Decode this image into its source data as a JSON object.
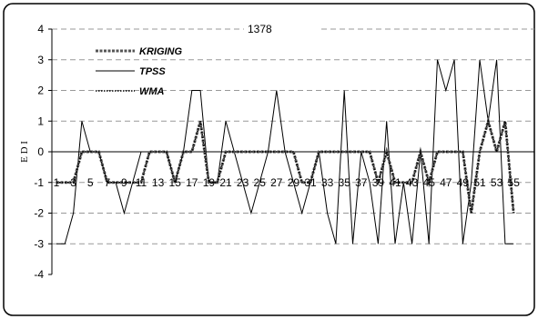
{
  "chart_data": {
    "type": "line",
    "title": "1378",
    "xlabel": "",
    "ylabel": "E D I",
    "ylim": [
      -4,
      4
    ],
    "yticks": [
      -4,
      -3,
      -2,
      -1,
      0,
      1,
      2,
      3,
      4
    ],
    "grid": "horizontal-dashed",
    "legend_placement": "top-left",
    "categories": [
      "1",
      "2",
      "3",
      "4",
      "5",
      "6",
      "7",
      "8",
      "9",
      "10",
      "11",
      "12",
      "13",
      "14",
      "15",
      "16",
      "17",
      "18",
      "19",
      "20",
      "21",
      "22",
      "23",
      "24",
      "25",
      "26",
      "27",
      "28",
      "29",
      "30",
      "31",
      "32",
      "33",
      "34",
      "35",
      "36",
      "37",
      "38",
      "39",
      "40",
      "41",
      "42",
      "43",
      "44",
      "45",
      "46",
      "47",
      "48",
      "49",
      "50",
      "51",
      "52",
      "53",
      "54",
      "55"
    ],
    "category_labels_shown": [
      "1",
      "3",
      "5",
      "7",
      "9",
      "11",
      "13",
      "15",
      "17",
      "19",
      "21",
      "23",
      "25",
      "27",
      "29",
      "31",
      "33",
      "35",
      "37",
      "39",
      "41",
      "43",
      "45",
      "47",
      "49",
      "51",
      "53",
      "55"
    ],
    "series": [
      {
        "name": "KRIGING",
        "style": "dashed-thick",
        "color": "#555555",
        "values": [
          -1,
          -1,
          -1,
          0,
          0,
          0,
          -1,
          -1,
          -1,
          -1,
          -1,
          0,
          0,
          0,
          -1,
          0,
          0,
          1,
          -1,
          -1,
          0,
          0,
          0,
          0,
          0,
          0,
          0,
          0,
          0,
          -1,
          -1,
          0,
          0,
          0,
          0,
          0,
          0,
          0,
          -1,
          0,
          -1,
          -1,
          -1,
          0,
          -1,
          0,
          0,
          0,
          0,
          -2,
          0,
          1,
          0,
          1,
          -2
        ]
      },
      {
        "name": "TPSS",
        "style": "solid",
        "color": "#000000",
        "values": [
          -3,
          -3,
          -2,
          1,
          0,
          0,
          -1,
          -1,
          -2,
          -1,
          0,
          0,
          0,
          0,
          -1,
          0,
          2,
          2,
          -1,
          -1,
          1,
          0,
          -1,
          -2,
          -1,
          0,
          2,
          0,
          -1,
          -2,
          -1,
          0,
          -2,
          -3,
          2,
          -3,
          0,
          -1,
          -3,
          1,
          -3,
          -1,
          -3,
          0,
          -3,
          3,
          2,
          3,
          -3,
          -1,
          3,
          1,
          3,
          -3,
          -3
        ]
      },
      {
        "name": "WMA",
        "style": "dotted",
        "color": "#000000",
        "values": [
          -1,
          -1,
          -1,
          0,
          0,
          0,
          -1,
          -1,
          -1,
          -1,
          -1,
          0,
          0,
          0,
          -1,
          0,
          0,
          1,
          -1,
          -1,
          0,
          0,
          0,
          0,
          0,
          0,
          0,
          0,
          0,
          -1,
          -1,
          0,
          0,
          0,
          0,
          0,
          0,
          0,
          -1,
          0,
          -1,
          -1,
          -1,
          0,
          -1,
          0,
          0,
          0,
          0,
          -2,
          0,
          1,
          0,
          1,
          -2
        ]
      }
    ]
  }
}
